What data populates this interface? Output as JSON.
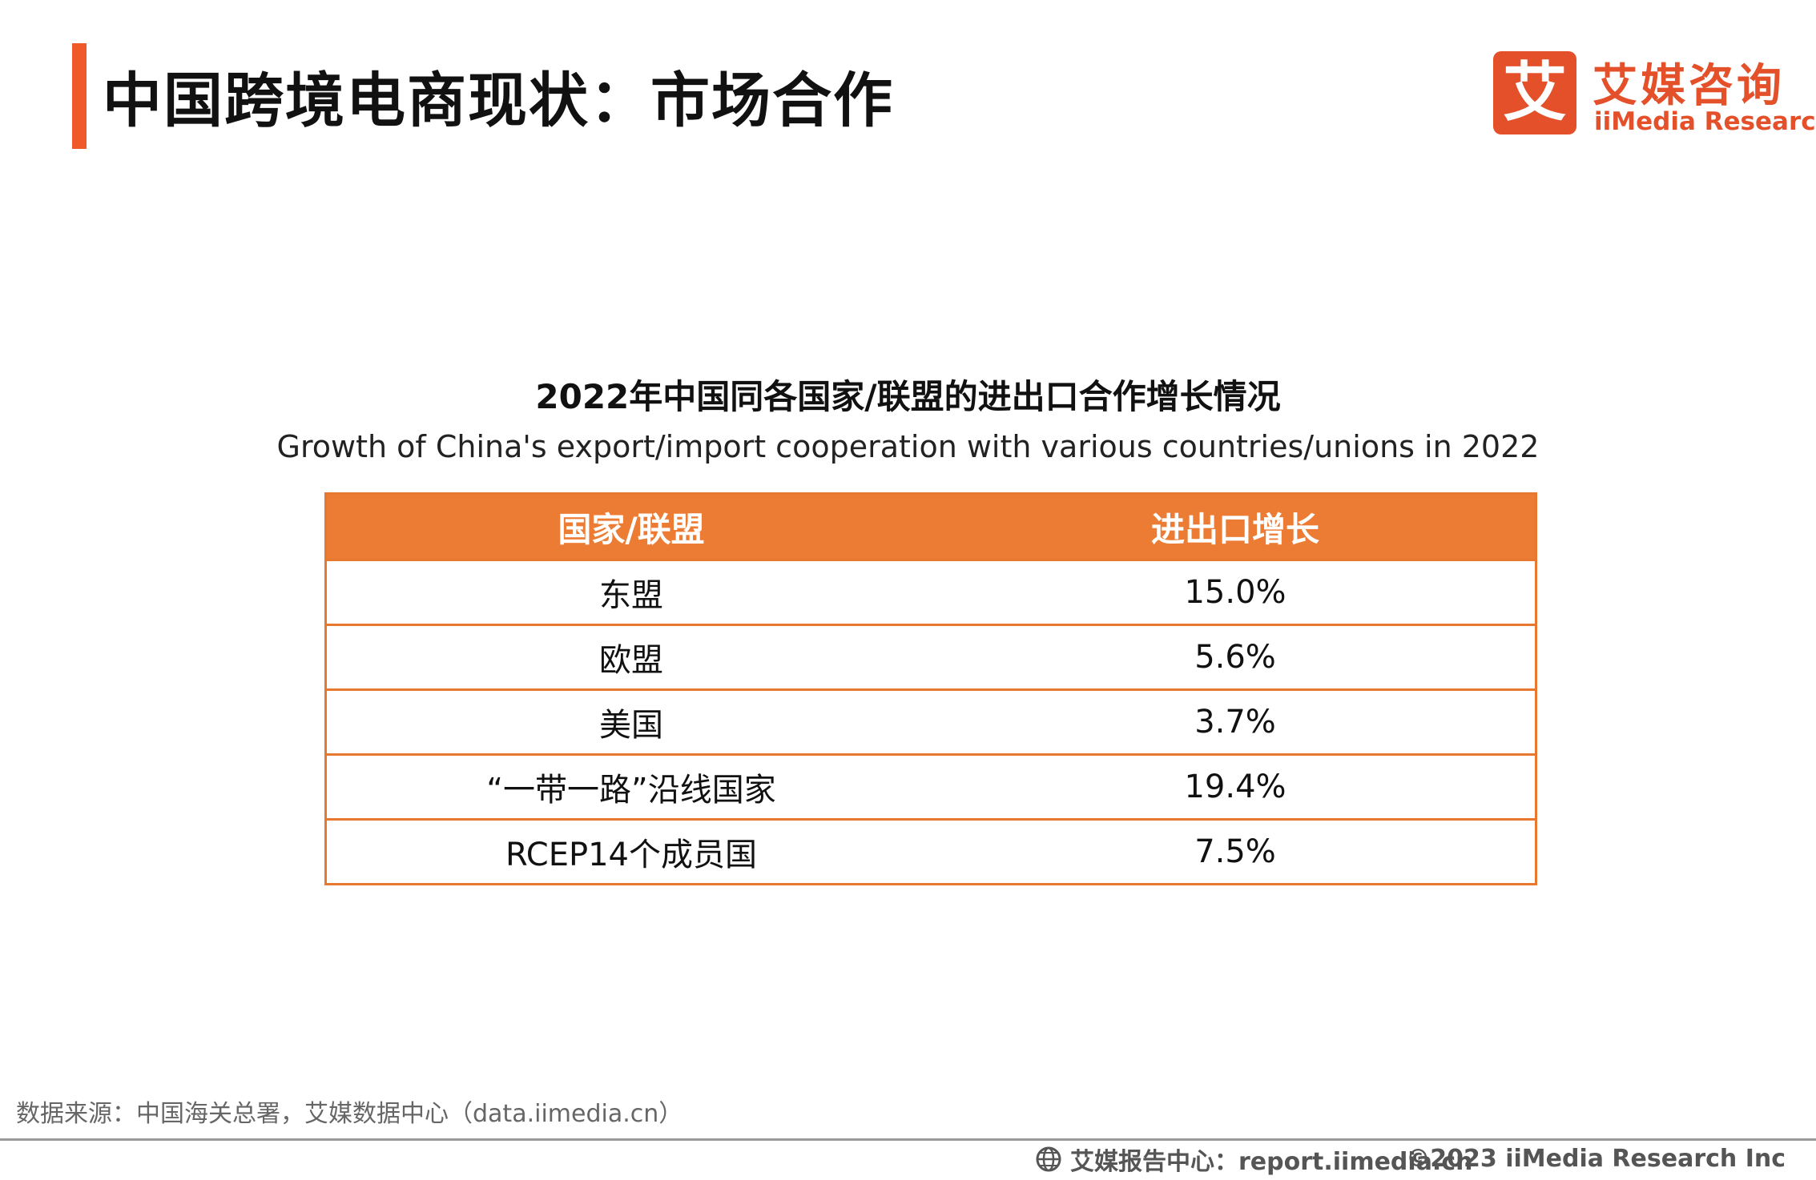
{
  "header": {
    "title": "中国跨境电商现状：市场合作",
    "logo_mark": "艾",
    "logo_cn": "艾媒咨询",
    "logo_en": "iiMedia Research",
    "accent_color": "#f05a28"
  },
  "table_block": {
    "title_cn": "2022年中国同各国家/联盟的进出口合作增长情况",
    "title_en": "Growth of China's export/import cooperation with various countries/unions in 2022",
    "columns": [
      "国家/联盟",
      "进出口增长"
    ],
    "rows": [
      [
        "东盟",
        "15.0%"
      ],
      [
        "欧盟",
        "5.6%"
      ],
      [
        "美国",
        "3.7%"
      ],
      [
        "“一带一路”沿线国家",
        "19.4%"
      ],
      [
        "RCEP14个成员国",
        "7.5%"
      ]
    ],
    "header_color": "#ec7c34"
  },
  "source": "数据来源：中国海关总署，艾媒数据中心（data.iimedia.cn）",
  "footer": {
    "report_center": "艾媒报告中心：report.iimedia.cn",
    "copyright": "©2023  iiMedia Research  Inc",
    "globe_icon": "globe-icon"
  }
}
